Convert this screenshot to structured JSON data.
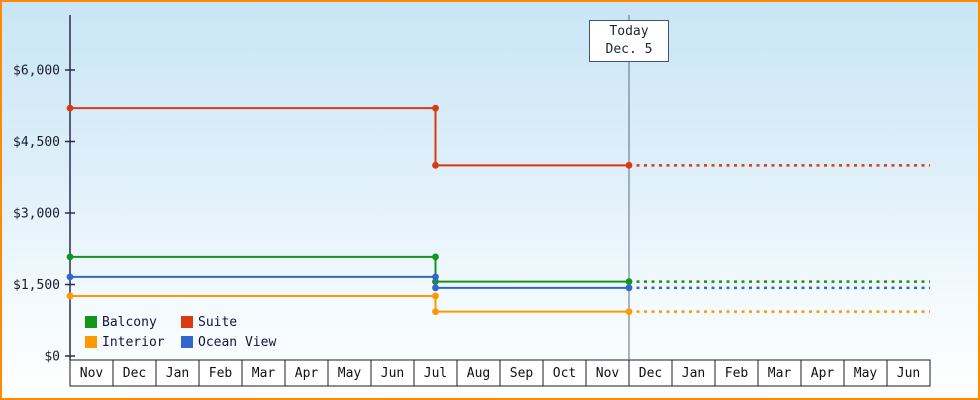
{
  "style": {
    "border_color": "#ff8a00",
    "background_top": "#c9e6f6",
    "background_bottom": "#ffffff"
  },
  "chart_data": {
    "type": "line",
    "subtype": "step-price-history-with-forecast",
    "grid": false,
    "legend_position": "bottom-left-inside",
    "x_categories": [
      "Nov",
      "Dec",
      "Jan",
      "Feb",
      "Mar",
      "Apr",
      "May",
      "Jun",
      "Jul",
      "Aug",
      "Sep",
      "Oct",
      "Nov",
      "Dec",
      "Jan",
      "Feb",
      "Mar",
      "Apr",
      "May",
      "Jun"
    ],
    "yticks": [
      0,
      1500,
      3000,
      4500,
      6000
    ],
    "ytick_labels": [
      "$0",
      "$1,500",
      "$3,000",
      "$4,500",
      "$6,000"
    ],
    "ylim": [
      0,
      7150
    ],
    "today": {
      "line1": "Today",
      "line2": "Dec. 5",
      "x": 13
    },
    "series": [
      {
        "name": "Balcony",
        "color": "#109618",
        "solid": [
          [
            0,
            2080
          ],
          [
            8.5,
            2080
          ],
          [
            8.5,
            1560
          ],
          [
            13,
            1560
          ]
        ],
        "dotted": [
          [
            13,
            1560
          ],
          [
            20,
            1560
          ]
        ]
      },
      {
        "name": "Suite",
        "color": "#dc3912",
        "solid": [
          [
            0,
            5200
          ],
          [
            8.5,
            5200
          ],
          [
            8.5,
            4000
          ],
          [
            13,
            4000
          ]
        ],
        "dotted": [
          [
            13,
            4000
          ],
          [
            20,
            4000
          ]
        ]
      },
      {
        "name": "Interior",
        "color": "#ff9900",
        "solid": [
          [
            0,
            1260
          ],
          [
            8.5,
            1260
          ],
          [
            8.5,
            930
          ],
          [
            13,
            930
          ]
        ],
        "dotted": [
          [
            13,
            930
          ],
          [
            20,
            930
          ]
        ]
      },
      {
        "name": "Ocean View",
        "color": "#3366cc",
        "solid": [
          [
            0,
            1660
          ],
          [
            8.5,
            1660
          ],
          [
            8.5,
            1430
          ],
          [
            13,
            1430
          ]
        ],
        "dotted": [
          [
            13,
            1430
          ],
          [
            20,
            1430
          ]
        ]
      }
    ]
  }
}
